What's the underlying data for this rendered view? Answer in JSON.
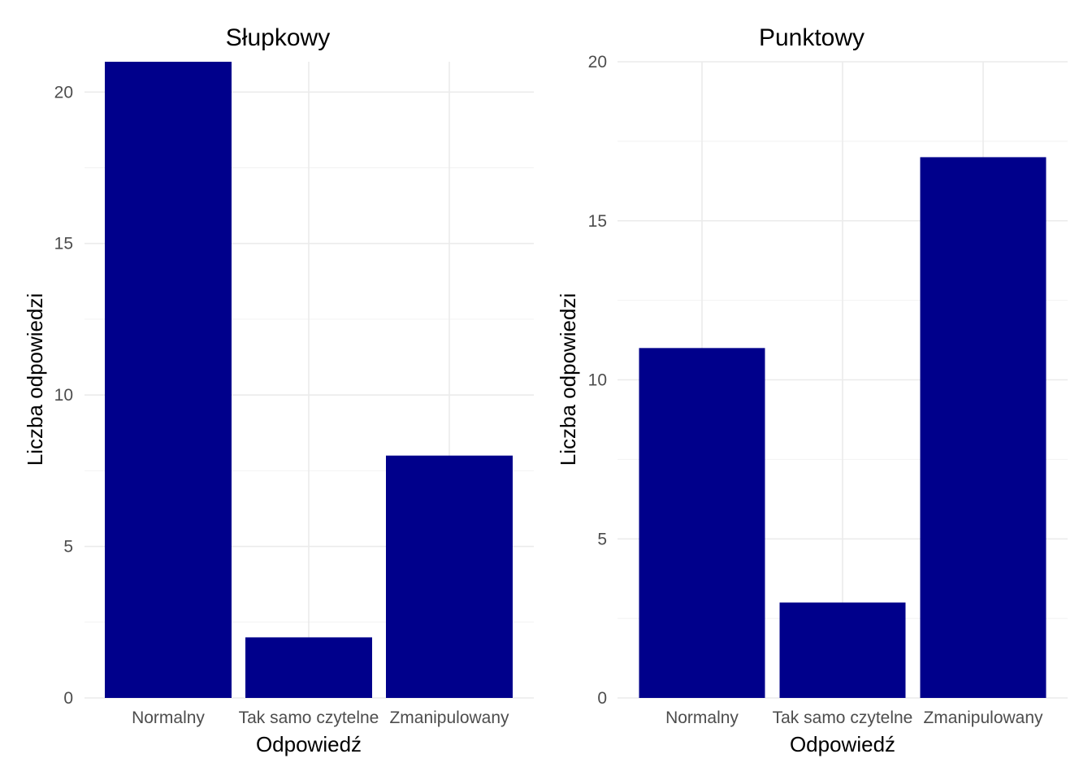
{
  "chart_data": [
    {
      "type": "bar",
      "title": "Słupkowy",
      "xlabel": "Odpowiedź",
      "ylabel": "Liczba odpowiedzi",
      "categories": [
        "Normalny",
        "Tak samo czytelne",
        "Zmanipulowany"
      ],
      "values": [
        21,
        2,
        8
      ],
      "ylim": [
        0,
        21
      ],
      "yticks": [
        "0",
        "5",
        "10",
        "15",
        "20"
      ],
      "grid": true,
      "bar_color": "#00008B"
    },
    {
      "type": "bar",
      "title": "Punktowy",
      "xlabel": "Odpowiedź",
      "ylabel": "Liczba odpowiedzi",
      "categories": [
        "Normalny",
        "Tak samo czytelne",
        "Zmanipulowany"
      ],
      "values": [
        11,
        3,
        17
      ],
      "ylim": [
        0,
        20
      ],
      "yticks": [
        "0",
        "5",
        "10",
        "15",
        "20"
      ],
      "grid": true,
      "bar_color": "#00008B"
    }
  ]
}
